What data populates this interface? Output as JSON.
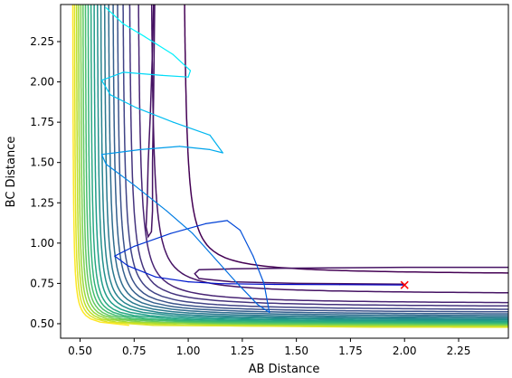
{
  "chart_data": {
    "type": "contour",
    "title": "",
    "xlabel": "AB Distance",
    "ylabel": "BC Distance",
    "xlim": [
      0.41,
      2.48
    ],
    "ylim": [
      0.41,
      2.48
    ],
    "xticks": [
      0.5,
      0.75,
      1.0,
      1.25,
      1.5,
      1.75,
      2.0,
      2.25
    ],
    "xtick_labels": [
      "0.50",
      "0.75",
      "1.00",
      "1.25",
      "1.50",
      "1.75",
      "2.00",
      "2.25"
    ],
    "yticks": [
      0.5,
      0.75,
      1.0,
      1.25,
      1.5,
      1.75,
      2.0,
      2.25
    ],
    "ytick_labels": [
      "0.50",
      "0.75",
      "1.00",
      "1.25",
      "1.50",
      "1.75",
      "2.00",
      "2.25"
    ],
    "colormap": "viridis",
    "marker": {
      "x": 2.0,
      "y": 0.74,
      "symbol": "x",
      "color": "#ff0000"
    },
    "contour_levels": [
      {
        "a": 0.97,
        "ay": 0.91,
        "b": 0.95,
        "by": 0.8,
        "d": 0.022
      },
      {
        "a": 0.82,
        "ay": 0.8,
        "b": 0.79,
        "by": 0.68,
        "d": 0.02
      },
      {
        "a": 0.76,
        "ay": 0.73,
        "b": 0.73,
        "by": 0.62,
        "d": 0.019
      },
      {
        "a": 0.72,
        "ay": 0.68,
        "b": 0.69,
        "by": 0.6,
        "d": 0.018
      },
      {
        "a": 0.69,
        "ay": 0.65,
        "b": 0.66,
        "by": 0.58,
        "d": 0.017
      },
      {
        "a": 0.665,
        "ay": 0.625,
        "b": 0.635,
        "by": 0.565,
        "d": 0.016
      },
      {
        "a": 0.645,
        "ay": 0.605,
        "b": 0.615,
        "by": 0.553,
        "d": 0.015
      },
      {
        "a": 0.625,
        "ay": 0.59,
        "b": 0.595,
        "by": 0.543,
        "d": 0.014
      },
      {
        "a": 0.607,
        "ay": 0.575,
        "b": 0.578,
        "by": 0.534,
        "d": 0.013
      },
      {
        "a": 0.59,
        "ay": 0.562,
        "b": 0.562,
        "by": 0.526,
        "d": 0.012
      },
      {
        "a": 0.575,
        "ay": 0.55,
        "b": 0.548,
        "by": 0.519,
        "d": 0.011
      },
      {
        "a": 0.56,
        "ay": 0.54,
        "b": 0.535,
        "by": 0.512,
        "d": 0.01
      },
      {
        "a": 0.546,
        "ay": 0.53,
        "b": 0.523,
        "by": 0.506,
        "d": 0.009
      },
      {
        "a": 0.533,
        "ay": 0.521,
        "b": 0.512,
        "by": 0.5,
        "d": 0.0085
      },
      {
        "a": 0.521,
        "ay": 0.513,
        "b": 0.502,
        "by": 0.495,
        "d": 0.008
      },
      {
        "a": 0.51,
        "ay": 0.505,
        "b": 0.493,
        "by": 0.49,
        "d": 0.0075
      },
      {
        "a": 0.5,
        "ay": 0.498,
        "b": 0.485,
        "by": 0.486,
        "d": 0.007
      },
      {
        "a": 0.49,
        "ay": 0.491,
        "b": 0.478,
        "by": 0.482,
        "d": 0.0065
      },
      {
        "a": 0.481,
        "ay": 0.485,
        "b": 0.471,
        "by": 0.478,
        "d": 0.006
      },
      {
        "a": 0.472,
        "ay": 0.479,
        "b": 0.465,
        "by": 0.475,
        "d": 0.0055
      },
      {
        "a": 0.464,
        "ay": 0.473,
        "b": 0.459,
        "by": 0.471,
        "d": 0.005
      }
    ],
    "extra_contours": {
      "hairpin": [
        [
          0.84,
          2.48
        ],
        [
          0.835,
          2.2
        ],
        [
          0.825,
          1.8
        ],
        [
          0.815,
          1.5
        ],
        [
          0.81,
          1.25
        ],
        [
          0.805,
          1.1
        ],
        [
          0.815,
          1.04
        ],
        [
          0.83,
          1.07
        ],
        [
          0.835,
          1.2
        ],
        [
          0.835,
          1.5
        ],
        [
          0.84,
          1.9
        ],
        [
          0.845,
          2.48
        ]
      ],
      "valley": [
        [
          2.48,
          0.85
        ],
        [
          2.0,
          0.85
        ],
        [
          1.5,
          0.845
        ],
        [
          1.2,
          0.84
        ],
        [
          1.05,
          0.835
        ],
        [
          1.03,
          0.81
        ],
        [
          1.05,
          0.78
        ],
        [
          1.2,
          0.76
        ],
        [
          1.5,
          0.75
        ],
        [
          2.0,
          0.745
        ]
      ]
    },
    "trajectory": [
      [
        2.0,
        0.74
      ],
      [
        1.7,
        0.742
      ],
      [
        1.4,
        0.744
      ],
      [
        1.15,
        0.748
      ],
      [
        1.0,
        0.76
      ],
      [
        0.85,
        0.79
      ],
      [
        0.72,
        0.86
      ],
      [
        0.66,
        0.92
      ],
      [
        0.75,
        0.98
      ],
      [
        0.92,
        1.06
      ],
      [
        1.08,
        1.12
      ],
      [
        1.18,
        1.14
      ],
      [
        1.24,
        1.08
      ],
      [
        1.3,
        0.92
      ],
      [
        1.35,
        0.75
      ],
      [
        1.375,
        0.57
      ],
      [
        1.32,
        0.62
      ],
      [
        1.22,
        0.76
      ],
      [
        1.12,
        0.91
      ],
      [
        1.02,
        1.06
      ],
      [
        0.9,
        1.2
      ],
      [
        0.75,
        1.36
      ],
      [
        0.62,
        1.49
      ],
      [
        0.6,
        1.55
      ],
      [
        0.78,
        1.58
      ],
      [
        0.96,
        1.6
      ],
      [
        1.1,
        1.58
      ],
      [
        1.16,
        1.56
      ],
      [
        1.1,
        1.67
      ],
      [
        0.93,
        1.75
      ],
      [
        0.76,
        1.84
      ],
      [
        0.64,
        1.92
      ],
      [
        0.6,
        2.01
      ],
      [
        0.7,
        2.06
      ],
      [
        0.88,
        2.04
      ],
      [
        1.0,
        2.03
      ],
      [
        1.01,
        2.07
      ],
      [
        0.93,
        2.17
      ],
      [
        0.8,
        2.28
      ],
      [
        0.7,
        2.36
      ],
      [
        0.62,
        2.46
      ]
    ]
  }
}
